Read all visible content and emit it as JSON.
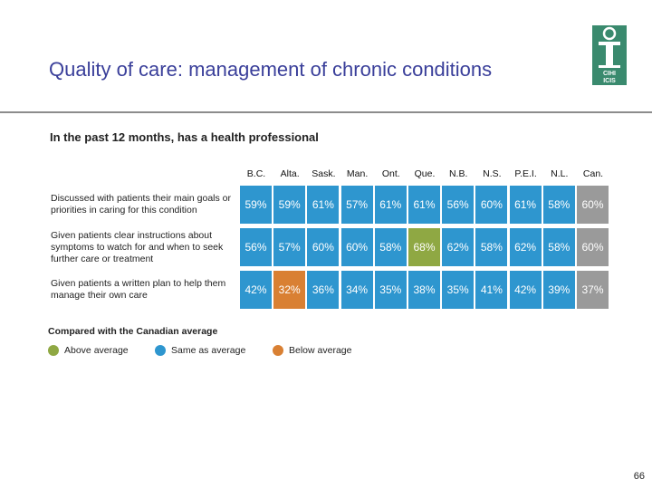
{
  "title": "Quality of care: management of chronic conditions",
  "subtitle": "In the past 12 months, has a health professional",
  "logo": {
    "line1": "CIHI",
    "line2": "ICIS"
  },
  "columns": [
    "B.C.",
    "Alta.",
    "Sask.",
    "Man.",
    "Ont.",
    "Que.",
    "N.B.",
    "N.S.",
    "P.E.I.",
    "N.L.",
    "Can."
  ],
  "rows": [
    {
      "label": "Discussed with patients their main goals or priorities in caring for this condition",
      "values": [
        "59%",
        "59%",
        "61%",
        "57%",
        "61%",
        "61%",
        "56%",
        "60%",
        "61%",
        "58%",
        "60%"
      ],
      "status": [
        "same",
        "same",
        "same",
        "same",
        "same",
        "same",
        "same",
        "same",
        "same",
        "same",
        "canada"
      ]
    },
    {
      "label": "Given patients clear instructions about symptoms to watch for and when to seek further care or treatment",
      "values": [
        "56%",
        "57%",
        "60%",
        "60%",
        "58%",
        "68%",
        "62%",
        "58%",
        "62%",
        "58%",
        "60%"
      ],
      "status": [
        "same",
        "same",
        "same",
        "same",
        "same",
        "above",
        "same",
        "same",
        "same",
        "same",
        "canada"
      ]
    },
    {
      "label": "Given patients a written plan to help them manage their own care",
      "values": [
        "42%",
        "32%",
        "36%",
        "34%",
        "35%",
        "38%",
        "35%",
        "41%",
        "42%",
        "39%",
        "37%"
      ],
      "status": [
        "same",
        "below",
        "same",
        "same",
        "same",
        "same",
        "same",
        "same",
        "same",
        "same",
        "canada"
      ]
    }
  ],
  "legend": {
    "title": "Compared with the Canadian average",
    "items": [
      {
        "label": "Above average",
        "color": "#8fa843"
      },
      {
        "label": "Same as average",
        "color": "#2e96cf"
      },
      {
        "label": "Below average",
        "color": "#d98033"
      }
    ]
  },
  "colors": {
    "above": "#8fa843",
    "same": "#2e96cf",
    "below": "#d98033",
    "canada": "#9a9a9a",
    "title": "#3a3f9a"
  },
  "page_number": "66"
}
